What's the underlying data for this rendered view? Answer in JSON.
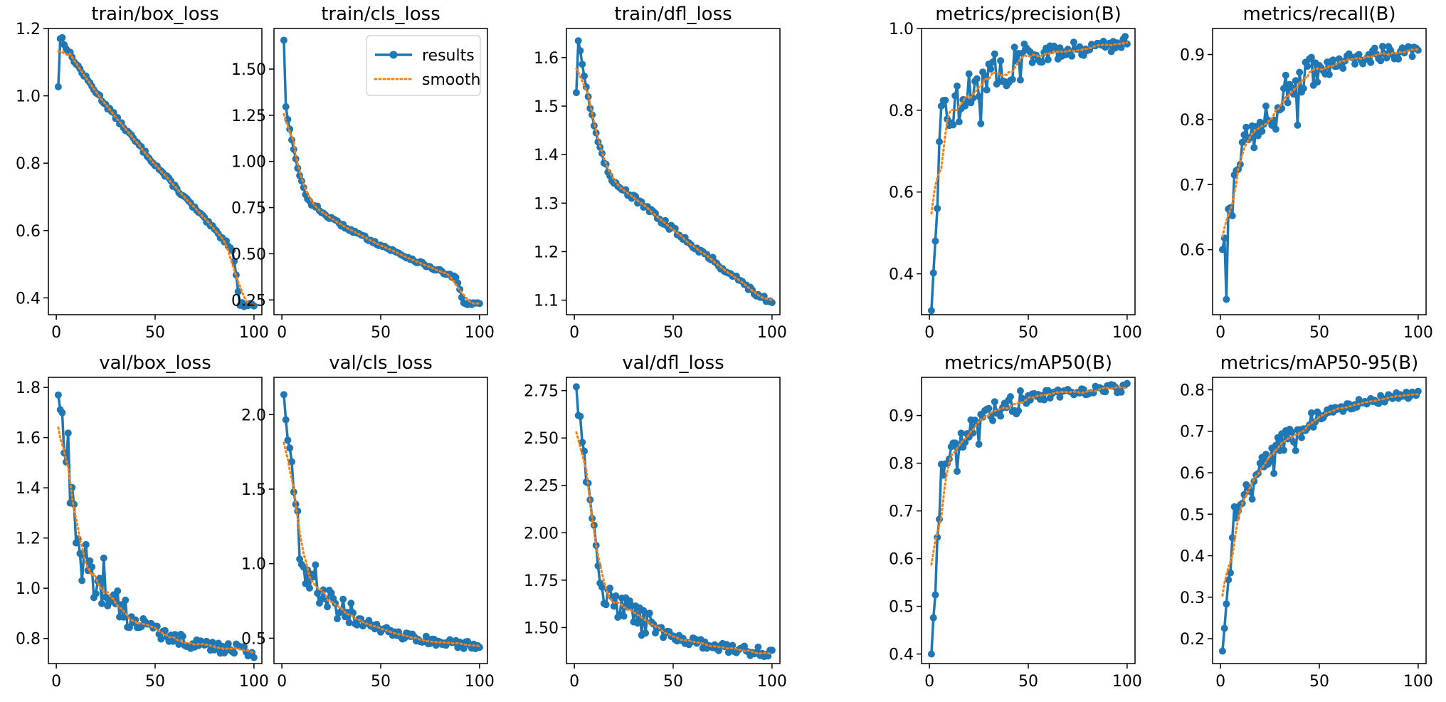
{
  "figure": {
    "background": "#ffffff"
  },
  "colors": {
    "results": "#1f77b4",
    "smooth": "#ff7f0e",
    "axes": "#000000"
  },
  "legend": {
    "results_label": "results",
    "smooth_label": "smooth",
    "placement": "top-right",
    "panel": "train/cls_loss"
  },
  "chart_data": [
    {
      "type": "line",
      "title": "train/box_loss",
      "xlim": [
        -4,
        104
      ],
      "ylim": [
        0.35,
        1.2
      ],
      "xticks": [
        0,
        50,
        100
      ],
      "xtick_labels": [
        "0",
        "50",
        "100"
      ],
      "yticks": [
        0.4,
        0.6,
        0.8,
        1.0,
        1.2
      ],
      "ytick_labels": [
        "0.4",
        "0.6",
        "0.8",
        "1.0",
        "1.2"
      ],
      "shape": {
        "kind": "box",
        "start": 1.03,
        "peak": 1.17,
        "peakAt": 3,
        "end": 0.38,
        "p": 0.85,
        "jumpAt": 90,
        "jumpDrop": 0.13,
        "noise": 0.006
      }
    },
    {
      "type": "line",
      "title": "train/cls_loss",
      "xlim": [
        -4,
        104
      ],
      "ylim": [
        0.17,
        1.72
      ],
      "xticks": [
        0,
        50,
        100
      ],
      "xtick_labels": [
        "0",
        "50",
        "100"
      ],
      "yticks": [
        0.25,
        0.5,
        0.75,
        1.0,
        1.25,
        1.5
      ],
      "ytick_labels": [
        "0.25",
        "0.50",
        "0.75",
        "1.00",
        "1.25",
        "1.50"
      ],
      "shape": {
        "kind": "cls",
        "start": 1.66,
        "second": 1.3,
        "knee": 0.75,
        "kneeAt": 18,
        "mid": 0.37,
        "jumpAt": 88,
        "jumpDrop": 0.1,
        "end": 0.23,
        "noise": 0.008
      }
    },
    {
      "type": "line",
      "title": "train/dfl_loss",
      "xlim": [
        -4,
        104
      ],
      "ylim": [
        1.07,
        1.66
      ],
      "xticks": [
        0,
        50,
        100
      ],
      "xtick_labels": [
        "0",
        "50",
        "100"
      ],
      "yticks": [
        1.1,
        1.2,
        1.3,
        1.4,
        1.5,
        1.6
      ],
      "ytick_labels": [
        "1.1",
        "1.2",
        "1.3",
        "1.4",
        "1.5",
        "1.6"
      ],
      "shape": {
        "kind": "dfl",
        "start": 1.53,
        "peak": 1.64,
        "peakAt": 2,
        "knee": 1.34,
        "kneeAt": 22,
        "end": 1.09,
        "noise": 0.006
      }
    },
    {
      "type": "line",
      "title": "metrics/precision(B)",
      "xlim": [
        -4,
        104
      ],
      "ylim": [
        0.3,
        1.0
      ],
      "xticks": [
        0,
        50,
        100
      ],
      "xtick_labels": [
        "0",
        "50",
        "100"
      ],
      "yticks": [
        0.4,
        0.6,
        0.8,
        1.0
      ],
      "ytick_labels": [
        "0.4",
        "0.6",
        "0.8",
        "1.0"
      ],
      "shape": {
        "kind": "metric",
        "start": 0.31,
        "mid": 0.77,
        "midAt": 6,
        "end": 0.97,
        "rate": 0.035,
        "noise": 0.04
      }
    },
    {
      "type": "line",
      "title": "metrics/recall(B)",
      "xlim": [
        -4,
        104
      ],
      "ylim": [
        0.5,
        0.94
      ],
      "xticks": [
        0,
        50,
        100
      ],
      "xtick_labels": [
        "0",
        "50",
        "100"
      ],
      "yticks": [
        0.6,
        0.7,
        0.8,
        0.9
      ],
      "ytick_labels": [
        "0.6",
        "0.7",
        "0.8",
        "0.9"
      ],
      "shape": {
        "kind": "metric",
        "start": 0.6,
        "dip": 0.53,
        "dipAt": 3,
        "mid": 0.76,
        "midAt": 10,
        "end": 0.92,
        "rate": 0.03,
        "noise": 0.025
      }
    },
    {
      "type": "line",
      "title": "val/box_loss",
      "xlim": [
        -4,
        104
      ],
      "ylim": [
        0.7,
        1.84
      ],
      "xticks": [
        0,
        50,
        100
      ],
      "xtick_labels": [
        "0",
        "50",
        "100"
      ],
      "yticks": [
        0.8,
        1.0,
        1.2,
        1.4,
        1.6,
        1.8
      ],
      "ytick_labels": [
        "0.8",
        "1.0",
        "1.2",
        "1.4",
        "1.6",
        "1.8"
      ],
      "shape": {
        "kind": "val",
        "start": 1.78,
        "mid": 1.1,
        "midAt": 12,
        "end": 0.73,
        "noise": 0.05
      }
    },
    {
      "type": "line",
      "title": "val/cls_loss",
      "xlim": [
        -4,
        104
      ],
      "ylim": [
        0.33,
        2.25
      ],
      "xticks": [
        0,
        50,
        100
      ],
      "xtick_labels": [
        "0",
        "50",
        "100"
      ],
      "yticks": [
        0.5,
        1.0,
        1.5,
        2.0
      ],
      "ytick_labels": [
        "0.5",
        "1.0",
        "1.5",
        "2.0"
      ],
      "shape": {
        "kind": "val",
        "start": 2.14,
        "mid": 0.95,
        "midAt": 10,
        "end": 0.42,
        "noise": 0.06
      }
    },
    {
      "type": "line",
      "title": "val/dfl_loss",
      "xlim": [
        -4,
        104
      ],
      "ylim": [
        1.31,
        2.82
      ],
      "xticks": [
        0,
        50,
        100
      ],
      "xtick_labels": [
        "0",
        "50",
        "100"
      ],
      "yticks": [
        1.5,
        1.75,
        2.0,
        2.25,
        2.5,
        2.75
      ],
      "ytick_labels": [
        "1.50",
        "1.75",
        "2.00",
        "2.25",
        "2.50",
        "2.75"
      ],
      "shape": {
        "kind": "val",
        "start": 2.77,
        "mid": 1.72,
        "midAt": 13,
        "end": 1.35,
        "noise": 0.05
      }
    },
    {
      "type": "line",
      "title": "metrics/mAP50(B)",
      "xlim": [
        -4,
        104
      ],
      "ylim": [
        0.38,
        0.98
      ],
      "xticks": [
        0,
        50,
        100
      ],
      "xtick_labels": [
        "0",
        "50",
        "100"
      ],
      "yticks": [
        0.4,
        0.5,
        0.6,
        0.7,
        0.8,
        0.9
      ],
      "ytick_labels": [
        "0.4",
        "0.5",
        "0.6",
        "0.7",
        "0.8",
        "0.9"
      ],
      "shape": {
        "kind": "metric",
        "start": 0.4,
        "mid": 0.78,
        "midAt": 6,
        "end": 0.96,
        "rate": 0.045,
        "noise": 0.02
      }
    },
    {
      "type": "line",
      "title": "metrics/mAP50-95(B)",
      "xlim": [
        -4,
        104
      ],
      "ylim": [
        0.14,
        0.83
      ],
      "xticks": [
        0,
        50,
        100
      ],
      "xtick_labels": [
        "0",
        "50",
        "100"
      ],
      "yticks": [
        0.2,
        0.3,
        0.4,
        0.5,
        0.6,
        0.7,
        0.8
      ],
      "ytick_labels": [
        "0.2",
        "0.3",
        "0.4",
        "0.5",
        "0.6",
        "0.7",
        "0.8"
      ],
      "shape": {
        "kind": "metric",
        "start": 0.17,
        "mid": 0.5,
        "midAt": 7,
        "end": 0.8,
        "rate": 0.035,
        "noise": 0.02
      }
    }
  ]
}
